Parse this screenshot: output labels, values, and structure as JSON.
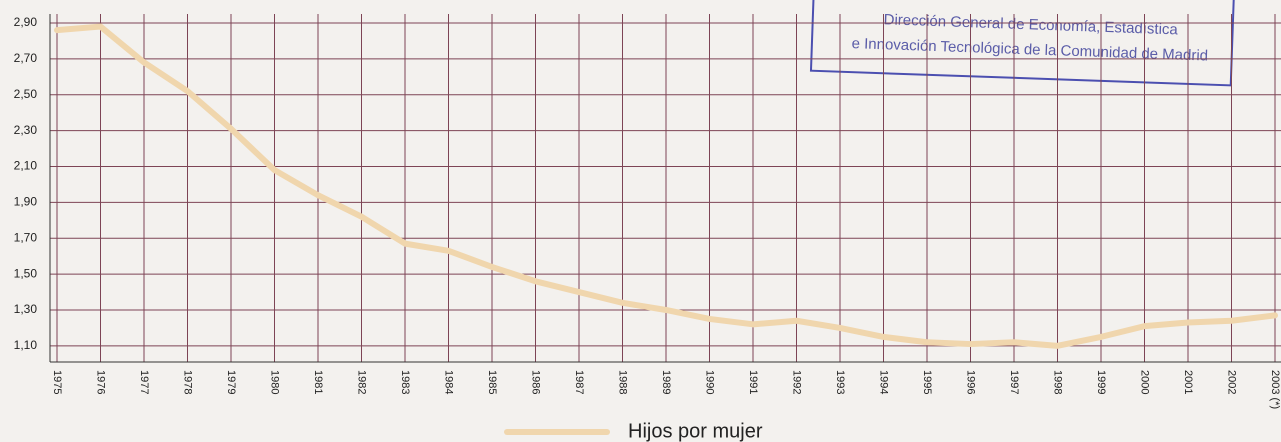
{
  "chart_data": {
    "type": "line",
    "categories": [
      "1975",
      "1976",
      "1977",
      "1978",
      "1979",
      "1980",
      "1981",
      "1982",
      "1983",
      "1984",
      "1985",
      "1986",
      "1987",
      "1988",
      "1989",
      "1990",
      "1991",
      "1992",
      "1993",
      "1994",
      "1995",
      "1996",
      "1997",
      "1998",
      "1999",
      "2000",
      "2001",
      "2002",
      "2003 (*)"
    ],
    "series": [
      {
        "name": "Hijos por mujer",
        "color": "#f0d6ad",
        "values": [
          2.86,
          2.88,
          2.68,
          2.52,
          2.31,
          2.08,
          1.94,
          1.82,
          1.67,
          1.63,
          1.54,
          1.46,
          1.4,
          1.34,
          1.3,
          1.25,
          1.22,
          1.24,
          1.2,
          1.15,
          1.12,
          1.11,
          1.12,
          1.1,
          1.15,
          1.21,
          1.23,
          1.24,
          1.27
        ]
      }
    ],
    "ylim": [
      1.01,
      2.95
    ],
    "yticks": [
      {
        "value": 2.9,
        "label": "2,90"
      },
      {
        "value": 2.7,
        "label": "2,70"
      },
      {
        "value": 2.5,
        "label": "2,50"
      },
      {
        "value": 2.3,
        "label": "2,30"
      },
      {
        "value": 2.1,
        "label": "2,10"
      },
      {
        "value": 1.9,
        "label": "1,90"
      },
      {
        "value": 1.7,
        "label": "1,70"
      },
      {
        "value": 1.5,
        "label": "1,50"
      },
      {
        "value": 1.3,
        "label": "1,30"
      },
      {
        "value": 1.1,
        "label": "1,10"
      }
    ],
    "grid": true,
    "annotations": [
      "Dirección General de Economía, Estadística",
      "e Innovación Tecnológica de la Comunidad de Madrid"
    ]
  }
}
